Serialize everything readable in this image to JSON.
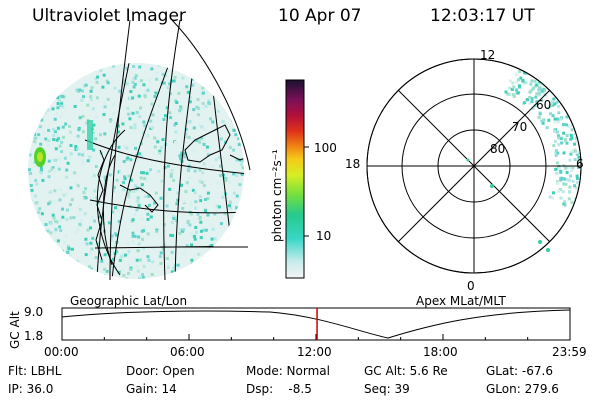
{
  "header": {
    "title": "Ultraviolet Imager",
    "date": "10 Apr 07",
    "time": "12:03:17 UT"
  },
  "colorbar": {
    "unit_label": "photon cm⁻²s⁻¹",
    "ticks": [
      "100",
      "10"
    ]
  },
  "left_map": {
    "caption": "Geographic Lat/Lon"
  },
  "right_map": {
    "caption": "Apex MLat/MLT",
    "mlt_labels": {
      "top": "12",
      "left": "18",
      "right": "6",
      "bottom": "0"
    },
    "lat_labels": [
      "60",
      "70",
      "80"
    ]
  },
  "altitude_plot": {
    "ylabel": "GC Alt",
    "y_ticks": [
      "9.0",
      "1.8"
    ],
    "x_ticks": [
      "00:00",
      "06:00",
      "12:00",
      "18:00",
      "23:59"
    ],
    "current_time_marker_hours": 12.05,
    "marker_color": "#cc0000"
  },
  "info": {
    "flt": "Flt: LBHL",
    "ip": "IP: 36.0",
    "door": "Door: Open",
    "gain": "Gain: 14",
    "mode": "Mode: Normal",
    "dsp": "Dsp:    -8.5",
    "gc_alt": "GC Alt: 5.6 Re",
    "seq": "Seq: 39",
    "glat": "GLat: -67.6",
    "glon": "GLon: 279.6"
  }
}
